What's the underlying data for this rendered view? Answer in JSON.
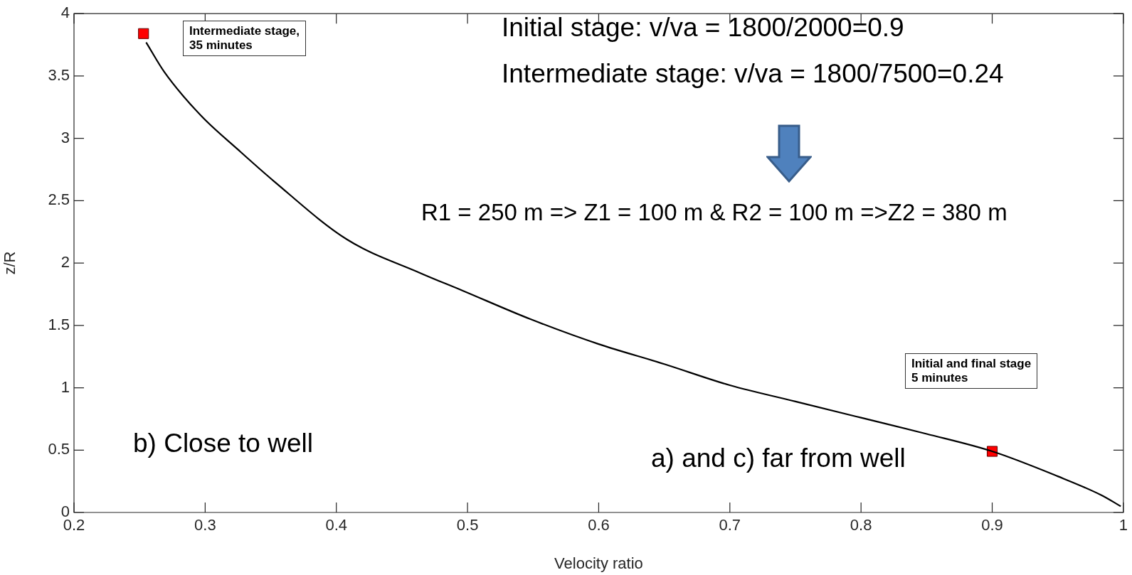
{
  "chart_data": {
    "type": "line",
    "xlabel": "Velocity ratio",
    "ylabel": "z/R",
    "xlim": [
      0.2,
      1
    ],
    "xticks": [
      0.2,
      0.3,
      0.4,
      0.5,
      0.6,
      0.7,
      0.8,
      0.9,
      1
    ],
    "ylim": [
      0,
      4
    ],
    "yticks": [
      0,
      0.5,
      1,
      1.5,
      2,
      2.5,
      3,
      3.5,
      4
    ],
    "grid": false,
    "legend": false,
    "series": [
      {
        "type": "line",
        "color": "#000000",
        "marker": "none",
        "line_style": "solid",
        "x": [
          0.255,
          0.269,
          0.297,
          0.325,
          0.352,
          0.408,
          0.464,
          0.496,
          0.548,
          0.6,
          0.65,
          0.7,
          0.75,
          0.8,
          0.85,
          0.9,
          0.95,
          0.983,
          0.998
        ],
        "values": [
          3.77,
          3.53,
          3.18,
          2.91,
          2.66,
          2.19,
          1.92,
          1.78,
          1.55,
          1.35,
          1.19,
          1.02,
          0.89,
          0.76,
          0.63,
          0.49,
          0.29,
          0.14,
          0.05
        ]
      },
      {
        "type": "scatter",
        "color": "#ff0000",
        "marker": "square",
        "x": [
          0.253,
          0.9
        ],
        "values": [
          3.84,
          0.49
        ]
      }
    ],
    "annotations": [
      "Intermediate stage,\n35 minutes",
      "Initial and final stage\n5 minutes",
      "Initial stage: v/va = 1800/2000=0.9",
      "Intermediate stage: v/va = 1800/7500=0.24",
      "R1 = 250 m => Z1 = 100 m & R2 = 100 m =>Z2 = 380 m",
      "b) Close to well",
      "a) and c) far from well"
    ]
  }
}
